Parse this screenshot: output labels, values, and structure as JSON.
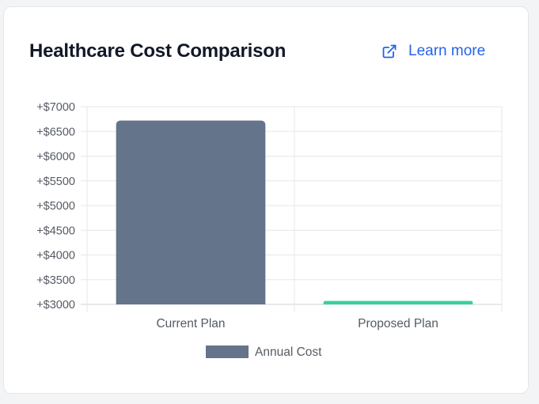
{
  "card": {
    "title": "Healthcare Cost Comparison",
    "link_label": "Learn more",
    "link_icon": "external-link-icon",
    "accent_color": "#2563eb"
  },
  "chart_data": {
    "type": "bar",
    "categories": [
      "Current Plan",
      "Proposed Plan"
    ],
    "series": [
      {
        "name": "Annual Cost",
        "values": [
          6720,
          3070
        ],
        "colors": [
          "#64748b",
          "#34d399"
        ]
      }
    ],
    "ylim": [
      3000,
      7000
    ],
    "yticks": [
      3000,
      3500,
      4000,
      4500,
      5000,
      5500,
      6000,
      6500,
      7000
    ],
    "ytick_prefix": "+$",
    "grid": true,
    "legend_position": "bottom",
    "legend_color": "#64748b"
  }
}
